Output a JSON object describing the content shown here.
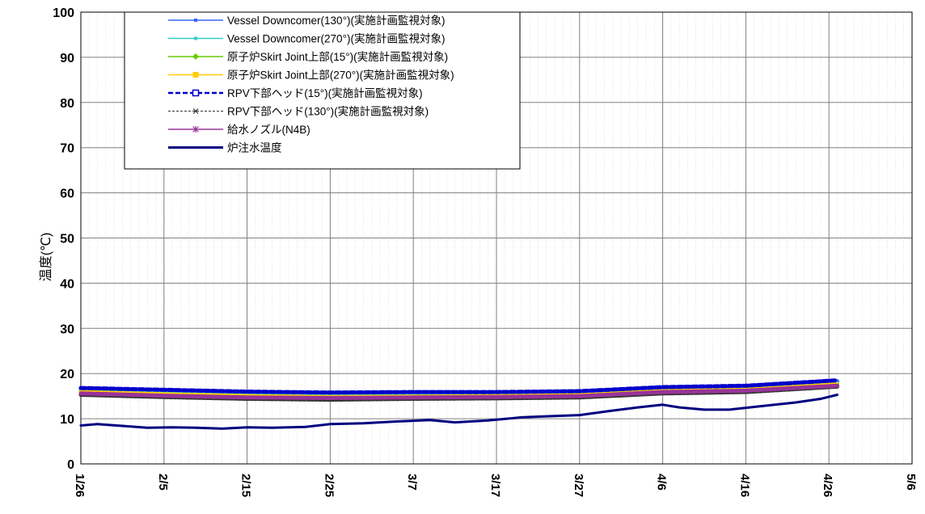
{
  "chart_data": {
    "type": "line",
    "ylabel": "温度(℃)",
    "xlabel": "",
    "ylim": [
      0,
      100
    ],
    "yticks": [
      0,
      10,
      20,
      30,
      40,
      50,
      60,
      70,
      80,
      90,
      100
    ],
    "xlim": [
      "1/26",
      "5/6"
    ],
    "x_tick_labels": [
      "1/26",
      "2/5",
      "2/15",
      "2/25",
      "3/7",
      "3/17",
      "3/27",
      "4/6",
      "4/16",
      "4/26",
      "5/6"
    ],
    "grid": true,
    "legend_position": "top-left",
    "series": [
      {
        "name": "Vessel Downcomer(130°)(実施計画監視対象)",
        "color": "#3366ff",
        "style": "solid",
        "marker": "small-square",
        "x": [
          "1/26",
          "2/5",
          "2/15",
          "2/25",
          "3/7",
          "3/17",
          "3/27",
          "4/6",
          "4/16",
          "4/27"
        ],
        "y": [
          16.6,
          16.2,
          15.8,
          15.6,
          15.7,
          15.7,
          15.9,
          16.8,
          17.0,
          18.3
        ]
      },
      {
        "name": "Vessel Downcomer(270°)(実施計画監視対象)",
        "color": "#33cccc",
        "style": "solid",
        "marker": "small-square",
        "x": [
          "1/26",
          "2/5",
          "2/15",
          "2/25",
          "3/7",
          "3/17",
          "3/27",
          "4/6",
          "4/16",
          "4/27"
        ],
        "y": [
          16.2,
          15.7,
          15.3,
          15.1,
          15.2,
          15.2,
          15.4,
          16.3,
          16.6,
          17.8
        ]
      },
      {
        "name": "原子炉Skirt Joint上部(15°)(実施計画監視対象)",
        "color": "#66cc00",
        "style": "solid",
        "marker": "diamond",
        "x": [
          "1/26",
          "2/5",
          "2/15",
          "2/25",
          "3/7",
          "3/17",
          "3/27",
          "4/6",
          "4/16",
          "4/27"
        ],
        "y": [
          15.8,
          15.3,
          14.9,
          14.7,
          14.8,
          14.9,
          15.1,
          16.0,
          16.3,
          17.5
        ]
      },
      {
        "name": "原子炉Skirt Joint上部(270°)(実施計画監視対象)",
        "color": "#ffcc00",
        "style": "solid",
        "marker": "square",
        "x": [
          "1/26",
          "2/5",
          "2/15",
          "2/25",
          "3/7",
          "3/17",
          "3/27",
          "4/6",
          "4/16",
          "4/27"
        ],
        "y": [
          15.9,
          15.4,
          15.0,
          14.8,
          14.9,
          15.0,
          15.2,
          16.1,
          16.4,
          17.6
        ]
      },
      {
        "name": "RPV下部ヘッド(15°)(実施計画監視対象)",
        "color": "#0000cc",
        "style": "dashed",
        "marker": "open-square",
        "x": [
          "1/26",
          "2/5",
          "2/15",
          "2/25",
          "3/7",
          "3/17",
          "3/27",
          "4/6",
          "4/16",
          "4/27"
        ],
        "y": [
          16.8,
          16.4,
          16.0,
          15.8,
          15.9,
          15.9,
          16.1,
          17.0,
          17.3,
          18.5
        ]
      },
      {
        "name": "RPV下部ヘッド(130°)(実施計画監視対象)",
        "color": "#333333",
        "style": "dashed",
        "marker": "x",
        "x": [
          "1/26",
          "2/5",
          "2/15",
          "2/25",
          "3/7",
          "3/17",
          "3/27",
          "4/6",
          "4/16",
          "4/27"
        ],
        "y": [
          15.3,
          14.8,
          14.4,
          14.2,
          14.4,
          14.5,
          14.7,
          15.6,
          15.9,
          17.1
        ]
      },
      {
        "name": "給水ノズル(N4B)",
        "color": "#993399",
        "style": "solid",
        "marker": "asterisk",
        "x": [
          "1/26",
          "2/5",
          "2/15",
          "2/25",
          "3/7",
          "3/17",
          "3/27",
          "4/6",
          "4/16",
          "4/27"
        ],
        "y": [
          15.6,
          15.1,
          14.7,
          14.6,
          14.7,
          14.8,
          15.0,
          15.9,
          16.2,
          17.3
        ]
      },
      {
        "name": "炉注水温度",
        "color": "#000080",
        "style": "solid-thick",
        "marker": "none",
        "x": [
          "1/26",
          "1/28",
          "1/31",
          "2/3",
          "2/6",
          "2/9",
          "2/12",
          "2/15",
          "2/18",
          "2/22",
          "2/25",
          "3/1",
          "3/5",
          "3/9",
          "3/12",
          "3/16",
          "3/20",
          "3/24",
          "3/27",
          "3/31",
          "4/3",
          "4/6",
          "4/8",
          "4/11",
          "4/14",
          "4/18",
          "4/22",
          "4/25",
          "4/27"
        ],
        "y": [
          8.5,
          8.8,
          8.4,
          8.0,
          8.1,
          8.0,
          7.8,
          8.1,
          8.0,
          8.2,
          8.8,
          9.0,
          9.4,
          9.7,
          9.2,
          9.6,
          10.3,
          10.6,
          10.8,
          11.8,
          12.5,
          13.1,
          12.5,
          12.0,
          12.0,
          12.8,
          13.6,
          14.4,
          15.3
        ]
      }
    ]
  }
}
